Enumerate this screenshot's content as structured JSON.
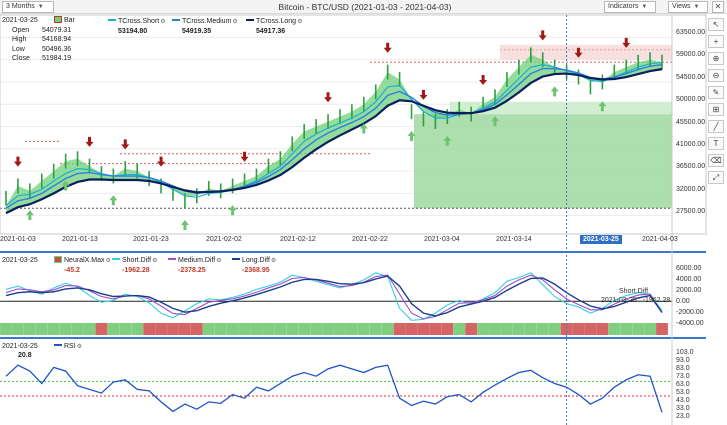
{
  "toolbar": {
    "timeframe": "3 Months",
    "title": "Bitcoin - BTC/USD (2021-01-03 - 2021-04-03)",
    "indicators_label": "Indicators",
    "views_label": "Views"
  },
  "side_icons": [
    "arrow-cursor-icon",
    "crosshair-icon",
    "zoom-in-icon",
    "zoom-out-icon",
    "pencil-icon",
    "ruler-icon",
    "trendline-icon",
    "text-icon",
    "eraser-icon",
    "fit-icon"
  ],
  "price_panel": {
    "date": "2021-03-25",
    "bar_label": "Bar",
    "open_label": "Open",
    "open": "54079.31",
    "high_label": "High",
    "high": "54168.94",
    "low_label": "Low",
    "low": "50496.36",
    "close_label": "Close",
    "close": "51984.19",
    "tcross_short_label": "TCross.Short",
    "tcross_short": "53194.80",
    "tcross_medium_label": "TCross.Medium",
    "tcross_medium": "54919.35",
    "tcross_long_label": "TCross.Long",
    "tcross_long": "54917.36",
    "colors": {
      "short": "#1ab0d0",
      "medium": "#2f7fe0",
      "long": "#0a1f5c",
      "cloud": "#6fd07a",
      "up_arrow": "#6fc46f",
      "down_arrow": "#a01818"
    }
  },
  "x_axis": {
    "labels": [
      "2021-01-03",
      "2021-01-13",
      "2021-01-23",
      "2021-02-02",
      "2021-02-12",
      "2021-02-22",
      "2021-03-04",
      "2021-03-14",
      "2021-03-25",
      "2021-04-03"
    ],
    "highlighted": "2021-03-25"
  },
  "price_axis": [
    "63500.00",
    "59000.00",
    "54500.00",
    "50000.00",
    "45500.00",
    "41000.00",
    "36500.00",
    "32000.00",
    "27500.00"
  ],
  "osc_panel": {
    "date": "2021-03-25",
    "neuralx_label": "NeuralX.Max",
    "neuralx": "-45.2",
    "short_label": "Short.Diff",
    "short": "-1962.28",
    "medium_label": "Medium.Diff",
    "medium": "-2378.25",
    "long_label": "Long.Diff",
    "long": "-2368.95",
    "axis": [
      "6000.00",
      "4000.00",
      "2000.00",
      "0.00",
      "-2000.00",
      "-4000.00"
    ],
    "tag_label": "Short.Diff",
    "tag_value": "2021-03-25 : -1962.28"
  },
  "rsi_panel": {
    "date": "2021-03-25",
    "label": "RSI",
    "value": "20.8",
    "axis": [
      "103.0",
      "93.0",
      "83.0",
      "73.0",
      "63.0",
      "53.0",
      "43.0",
      "33.0",
      "23.0",
      "13.0"
    ]
  },
  "chart_data": [
    {
      "type": "line",
      "title": "Bitcoin - BTC/USD (2021-01-03 - 2021-04-03)",
      "x_start": "2021-01-03",
      "x_end": "2021-04-03",
      "ylim": [
        25000,
        65000
      ],
      "series": [
        {
          "name": "Bar",
          "values": [
            31000,
            33500,
            32500,
            34500,
            36500,
            38500,
            39000,
            37500,
            36000,
            35500,
            37000,
            36500,
            35000,
            33500,
            32000,
            30500,
            31500,
            33000,
            32500,
            33500,
            34500,
            35500,
            37500,
            39000,
            42000,
            44500,
            45500,
            46500,
            47500,
            48500,
            50000,
            52500,
            56500,
            55000,
            48500,
            47000,
            46500,
            47500,
            49000,
            48000,
            50000,
            51500,
            55000,
            57500,
            60000,
            59000,
            57500,
            56500,
            55500,
            53500,
            54500,
            56500,
            57500,
            58500,
            59000,
            58500
          ]
        },
        {
          "name": "TCross.Short",
          "values": [
            29500,
            31500,
            31800,
            32800,
            34500,
            36000,
            37000,
            36800,
            36000,
            35500,
            35800,
            35800,
            35200,
            34200,
            32800,
            31500,
            31200,
            32000,
            32200,
            32700,
            33500,
            34500,
            36000,
            37500,
            40000,
            42500,
            44000,
            45200,
            46200,
            47200,
            48500,
            50500,
            53500,
            53800,
            51000,
            48500,
            47200,
            47200,
            48000,
            48200,
            49200,
            50500,
            52800,
            55200,
            57500,
            58000,
            57500,
            56800,
            56000,
            54800,
            54600,
            55500,
            56500,
            57500,
            58200,
            58400
          ]
        },
        {
          "name": "TCross.Medium",
          "values": [
            29000,
            30500,
            31000,
            32000,
            33500,
            35000,
            36000,
            36200,
            35800,
            35500,
            35500,
            35500,
            35200,
            34500,
            33500,
            32500,
            32000,
            32300,
            32400,
            32800,
            33400,
            34200,
            35400,
            36800,
            38800,
            41000,
            42800,
            44200,
            45300,
            46300,
            47500,
            49200,
            51800,
            52600,
            51400,
            49600,
            48300,
            47800,
            48000,
            48200,
            48900,
            50000,
            51900,
            54000,
            56200,
            57200,
            57200,
            56900,
            56300,
            55400,
            55100,
            55500,
            56200,
            57000,
            57700,
            58000
          ]
        },
        {
          "name": "TCross.Long",
          "values": [
            28000,
            29200,
            29800,
            30800,
            32000,
            33300,
            34300,
            34800,
            34800,
            34700,
            34700,
            34700,
            34500,
            34000,
            33300,
            32600,
            32200,
            32300,
            32400,
            32700,
            33100,
            33700,
            34600,
            35700,
            37300,
            39200,
            40900,
            42400,
            43700,
            44900,
            46100,
            47600,
            49700,
            50800,
            50600,
            49700,
            48800,
            48300,
            48200,
            48200,
            48600,
            49300,
            50700,
            52400,
            54300,
            55600,
            56100,
            56200,
            55900,
            55300,
            55000,
            55100,
            55500,
            56100,
            56700,
            57100
          ]
        }
      ]
    },
    {
      "type": "line",
      "x_start": "2021-01-03",
      "x_end": "2021-04-03",
      "ylim": [
        -5000,
        7000
      ],
      "series": [
        {
          "name": "Short.Diff",
          "values": [
            2500,
            3200,
            2200,
            1500,
            2800,
            3800,
            3000,
            1200,
            -200,
            200,
            1500,
            1000,
            -300,
            -2500,
            -3500,
            -2000,
            -500,
            500,
            300,
            800,
            1500,
            2500,
            3200,
            4000,
            5500,
            5000,
            4200,
            3500,
            2800,
            3500,
            4500,
            6000,
            5200,
            -1500,
            -4000,
            -3800,
            -2500,
            -800,
            200,
            -600,
            500,
            1800,
            4200,
            5000,
            6000,
            3500,
            1000,
            -500,
            -1200,
            -2500,
            -1500,
            200,
            1200,
            1800,
            1500,
            -1962
          ]
        },
        {
          "name": "Medium.Diff",
          "values": [
            1800,
            2600,
            2400,
            2000,
            2400,
            3300,
            3200,
            2200,
            1000,
            500,
            1100,
            1200,
            500,
            -1000,
            -2600,
            -2800,
            -1500,
            -200,
            200,
            500,
            1100,
            1900,
            2800,
            3600,
            4800,
            5000,
            4500,
            3800,
            3100,
            3300,
            4000,
            5200,
            5500,
            1500,
            -2500,
            -3700,
            -3200,
            -1800,
            -400,
            -300,
            300,
            1200,
            3200,
            4500,
            5500,
            4500,
            2400,
            500,
            -700,
            -1800,
            -1800,
            -600,
            500,
            1300,
            1500,
            -2378
          ]
        },
        {
          "name": "Long.Diff",
          "values": [
            1200,
            1800,
            2000,
            1800,
            2000,
            2600,
            2800,
            2400,
            1600,
            1000,
            1100,
            1200,
            900,
            -200,
            -1500,
            -2300,
            -2000,
            -1100,
            -400,
            100,
            700,
            1400,
            2200,
            3000,
            4000,
            4600,
            4600,
            4200,
            3700,
            3600,
            3900,
            4700,
            5300,
            3200,
            -500,
            -2500,
            -3100,
            -2400,
            -1200,
            -600,
            0,
            800,
            2300,
            3600,
            4800,
            4900,
            3600,
            1800,
            300,
            -1000,
            -1600,
            -1100,
            -200,
            700,
            1200,
            -2369
          ]
        }
      ]
    },
    {
      "type": "line",
      "x_start": "2021-01-03",
      "x_end": "2021-04-03",
      "ylim": [
        13,
        103
      ],
      "series": [
        {
          "name": "RSI",
          "values": [
            70,
            85,
            77,
            60,
            82,
            77,
            57,
            52,
            47,
            62,
            65,
            52,
            50,
            35,
            22,
            32,
            25,
            35,
            33,
            45,
            40,
            55,
            50,
            60,
            70,
            75,
            70,
            80,
            85,
            80,
            75,
            82,
            85,
            40,
            30,
            36,
            32,
            42,
            45,
            35,
            48,
            58,
            67,
            75,
            78,
            68,
            60,
            55,
            45,
            32,
            40,
            55,
            65,
            72,
            70,
            20.8
          ]
        }
      ]
    }
  ]
}
